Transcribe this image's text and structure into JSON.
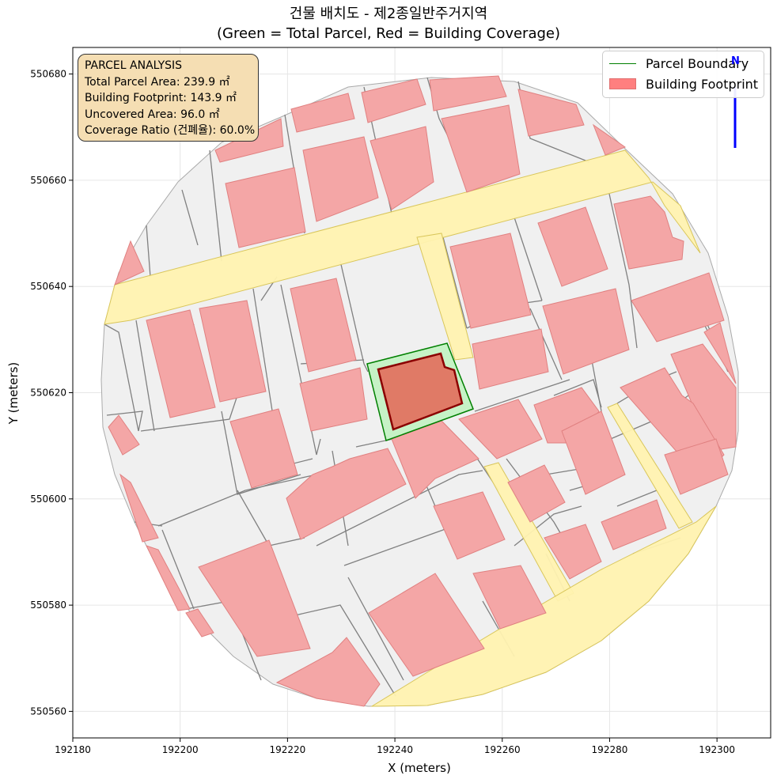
{
  "title": {
    "line1": "건물 배치도 - 제2종일반주거지역",
    "line2": "(Green = Total Parcel, Red = Building Coverage)"
  },
  "axes": {
    "xlabel": "X (meters)",
    "ylabel": "Y (meters)",
    "xlim": [
      192180,
      192310
    ],
    "ylim": [
      550555,
      550685
    ],
    "x_ticks": [
      "192180",
      "192200",
      "192220",
      "192240",
      "192260",
      "192280",
      "192300"
    ],
    "y_ticks": [
      "550560",
      "550580",
      "550600",
      "550620",
      "550640",
      "550660",
      "550680"
    ],
    "grid": true
  },
  "info_box": {
    "heading": "PARCEL ANALYSIS",
    "total_area": "Total Parcel Area: 239.9 ㎡",
    "footprint": "Building Footprint: 143.9 ㎡",
    "uncovered": "Uncovered Area: 96.0 ㎡",
    "coverage": "Coverage Ratio (건폐율): 60.0%"
  },
  "legend": {
    "placement": "top-right",
    "items": [
      {
        "label": "Parcel Boundary",
        "color": "#008000"
      },
      {
        "label": "Building Footprint",
        "color": "#ff7070"
      }
    ]
  },
  "north_arrow": {
    "label": "N",
    "color": "#0000ff"
  },
  "colors": {
    "site_fill": "#f0f0f0",
    "parcel_lines": "#808080",
    "building_fill": "#f4a6a6",
    "road_fill": "#fff2b0",
    "target_parcel": "#c6f2c6",
    "target_parcel_edge": "#008000",
    "target_building": "#e07a66",
    "target_building_edge": "#8b0000"
  }
}
